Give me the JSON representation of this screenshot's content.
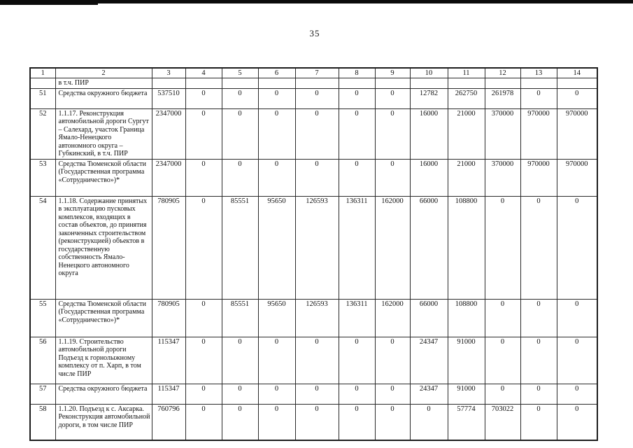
{
  "page": {
    "number": "35"
  },
  "table": {
    "column_headers": [
      "1",
      "2",
      "3",
      "4",
      "5",
      "6",
      "7",
      "8",
      "9",
      "10",
      "11",
      "12",
      "13",
      "14"
    ],
    "rows": [
      {
        "num": "",
        "name": "в т.ч. ПИР",
        "values": [
          "",
          "",
          "",
          "",
          "",
          "",
          "",
          "",
          "",
          "",
          "",
          ""
        ]
      },
      {
        "num": "51",
        "name": "Средства окружного бюджета",
        "values": [
          "537510",
          "0",
          "0",
          "0",
          "0",
          "0",
          "0",
          "12782",
          "262750",
          "261978",
          "0",
          "0"
        ]
      },
      {
        "num": "52",
        "name": "1.1.17. Реконструкция автомобильной дороги Сургут – Салехард, участок Граница Ямало-Ненецкого автономного округа – Губкинский, в т.ч. ПИР",
        "values": [
          "2347000",
          "0",
          "0",
          "0",
          "0",
          "0",
          "0",
          "16000",
          "21000",
          "370000",
          "970000",
          "970000"
        ]
      },
      {
        "num": "53",
        "name": "Средства Тюменской области (Государственная программа «Сотрудничество»)*",
        "values": [
          "2347000",
          "0",
          "0",
          "0",
          "0",
          "0",
          "0",
          "16000",
          "21000",
          "370000",
          "970000",
          "970000"
        ]
      },
      {
        "num": "54",
        "name": "1.1.18. Содержание принятых в эксплуатацию пусковых комплексов, входящих в состав объектов, до принятия законченных строительством (реконструкцией) объектов в государственную собственность Ямало-Ненецкого автономного округа",
        "values": [
          "780905",
          "0",
          "85551",
          "95650",
          "126593",
          "136311",
          "162000",
          "66000",
          "108800",
          "0",
          "0",
          "0"
        ]
      },
      {
        "num": "55",
        "name": "Средства Тюменской области (Государственная программа «Сотрудничество»)*",
        "values": [
          "780905",
          "0",
          "85551",
          "95650",
          "126593",
          "136311",
          "162000",
          "66000",
          "108800",
          "0",
          "0",
          "0"
        ]
      },
      {
        "num": "56",
        "name": "1.1.19. Строительство автомобильной дороги Подъезд к горнолыжному комплексу от п. Харп, в том числе ПИР",
        "values": [
          "115347",
          "0",
          "0",
          "0",
          "0",
          "0",
          "0",
          "24347",
          "91000",
          "0",
          "0",
          "0"
        ]
      },
      {
        "num": "57",
        "name": "Средства окружного бюджета",
        "values": [
          "115347",
          "0",
          "0",
          "0",
          "0",
          "0",
          "0",
          "24347",
          "91000",
          "0",
          "0",
          "0"
        ]
      },
      {
        "num": "58",
        "name": "1.1.20. Подъезд к с. Аксарка. Реконструкция автомобильной дороги, в том числе ПИР",
        "values": [
          "760796",
          "0",
          "0",
          "0",
          "0",
          "0",
          "0",
          "0",
          "57774",
          "703022",
          "0",
          "0"
        ]
      }
    ]
  }
}
